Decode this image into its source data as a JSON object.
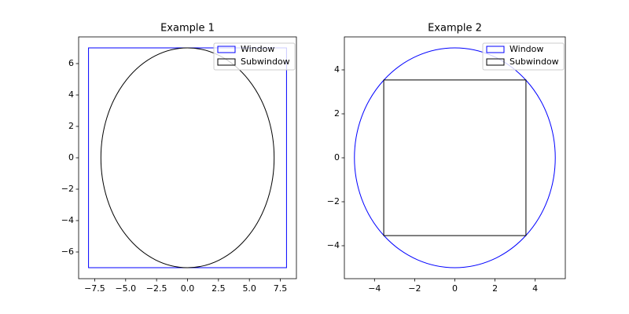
{
  "chart_data": [
    {
      "type": "shapes",
      "title": "Example 1",
      "series": [
        {
          "name": "Window",
          "color": "#0000ff",
          "shape": "rectangle",
          "x": [
            -8,
            8
          ],
          "y": [
            -7,
            7
          ]
        },
        {
          "name": "Subwindow",
          "color": "#000000",
          "shape": "ellipse",
          "x": [
            -7,
            7
          ],
          "y": [
            -7,
            7
          ]
        }
      ],
      "xlim": [
        -8.8,
        8.8
      ],
      "xticks": [
        {
          "value": -7.5,
          "label": "−7.5"
        },
        {
          "value": -5,
          "label": "−5.0"
        },
        {
          "value": -2.5,
          "label": "−2.5"
        },
        {
          "value": 0,
          "label": "0.0"
        },
        2.5,
        {
          "value": 5,
          "label": "5.0"
        },
        {
          "value": 7.5,
          "label": "7.5"
        }
      ],
      "ylim": [
        -7.7,
        7.7
      ],
      "yticks": [
        {
          "value": -6,
          "label": "−6"
        },
        {
          "value": -4,
          "label": "−4"
        },
        {
          "value": -2,
          "label": "−2"
        },
        0,
        2,
        4,
        6
      ],
      "legend": "upper right"
    },
    {
      "type": "shapes",
      "title": "Example 2",
      "series": [
        {
          "name": "Window",
          "color": "#0000ff",
          "shape": "ellipse",
          "x": [
            -5,
            5
          ],
          "y": [
            -5,
            5
          ]
        },
        {
          "name": "Subwindow",
          "color": "#000000",
          "shape": "rectangle",
          "x": [
            -3.54,
            3.54
          ],
          "y": [
            -3.54,
            3.54
          ]
        }
      ],
      "xlim": [
        -5.5,
        5.5
      ],
      "xticks": [
        {
          "value": -4,
          "label": "−4"
        },
        {
          "value": -2,
          "label": "−2"
        },
        0,
        2,
        4
      ],
      "ylim": [
        -5.5,
        5.5
      ],
      "yticks": [
        {
          "value": -4,
          "label": "−4"
        },
        {
          "value": -2,
          "label": "−2"
        },
        0,
        2,
        4
      ],
      "legend": "upper right"
    }
  ]
}
